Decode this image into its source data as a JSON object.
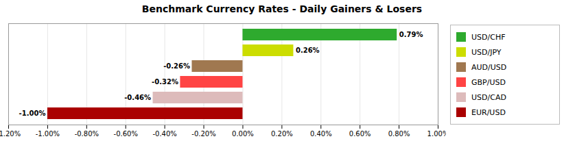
{
  "chart_data": {
    "type": "bar",
    "orientation": "horizontal",
    "title": "Benchmark Currency Rates - Daily Gainers & Losers",
    "categories": [
      "USD/CHF",
      "USD/JPY",
      "AUD/USD",
      "GBP/USD",
      "USD/CAD",
      "EUR/USD"
    ],
    "values": [
      0.79,
      0.26,
      -0.26,
      -0.32,
      -0.46,
      -1.0
    ],
    "value_labels": [
      "0.79%",
      "0.26%",
      "-0.26%",
      "-0.32%",
      "-0.46%",
      "-1.00%"
    ],
    "colors": [
      "#2EAA2E",
      "#CCDD00",
      "#A07850",
      "#FF4444",
      "#DDBBBB",
      "#AA0000"
    ],
    "xlim": [
      -1.2,
      1.0
    ],
    "xticks": [
      {
        "value": -1.2,
        "label": "-1.20%"
      },
      {
        "value": -1.0,
        "label": "-1.00%"
      },
      {
        "value": -0.8,
        "label": "-0.80%"
      },
      {
        "value": -0.6,
        "label": "-0.60%"
      },
      {
        "value": -0.4,
        "label": "-0.40%"
      },
      {
        "value": -0.2,
        "label": "-0.20%"
      },
      {
        "value": 0.0,
        "label": "0.00%"
      },
      {
        "value": 0.2,
        "label": "0.20%"
      },
      {
        "value": 0.4,
        "label": "0.40%"
      },
      {
        "value": 0.6,
        "label": "0.60%"
      },
      {
        "value": 0.8,
        "label": "0.80%"
      },
      {
        "value": 1.0,
        "label": "1.00%"
      }
    ],
    "grid": true,
    "legend": "right",
    "data_labels": true,
    "tick_labels": "x"
  }
}
